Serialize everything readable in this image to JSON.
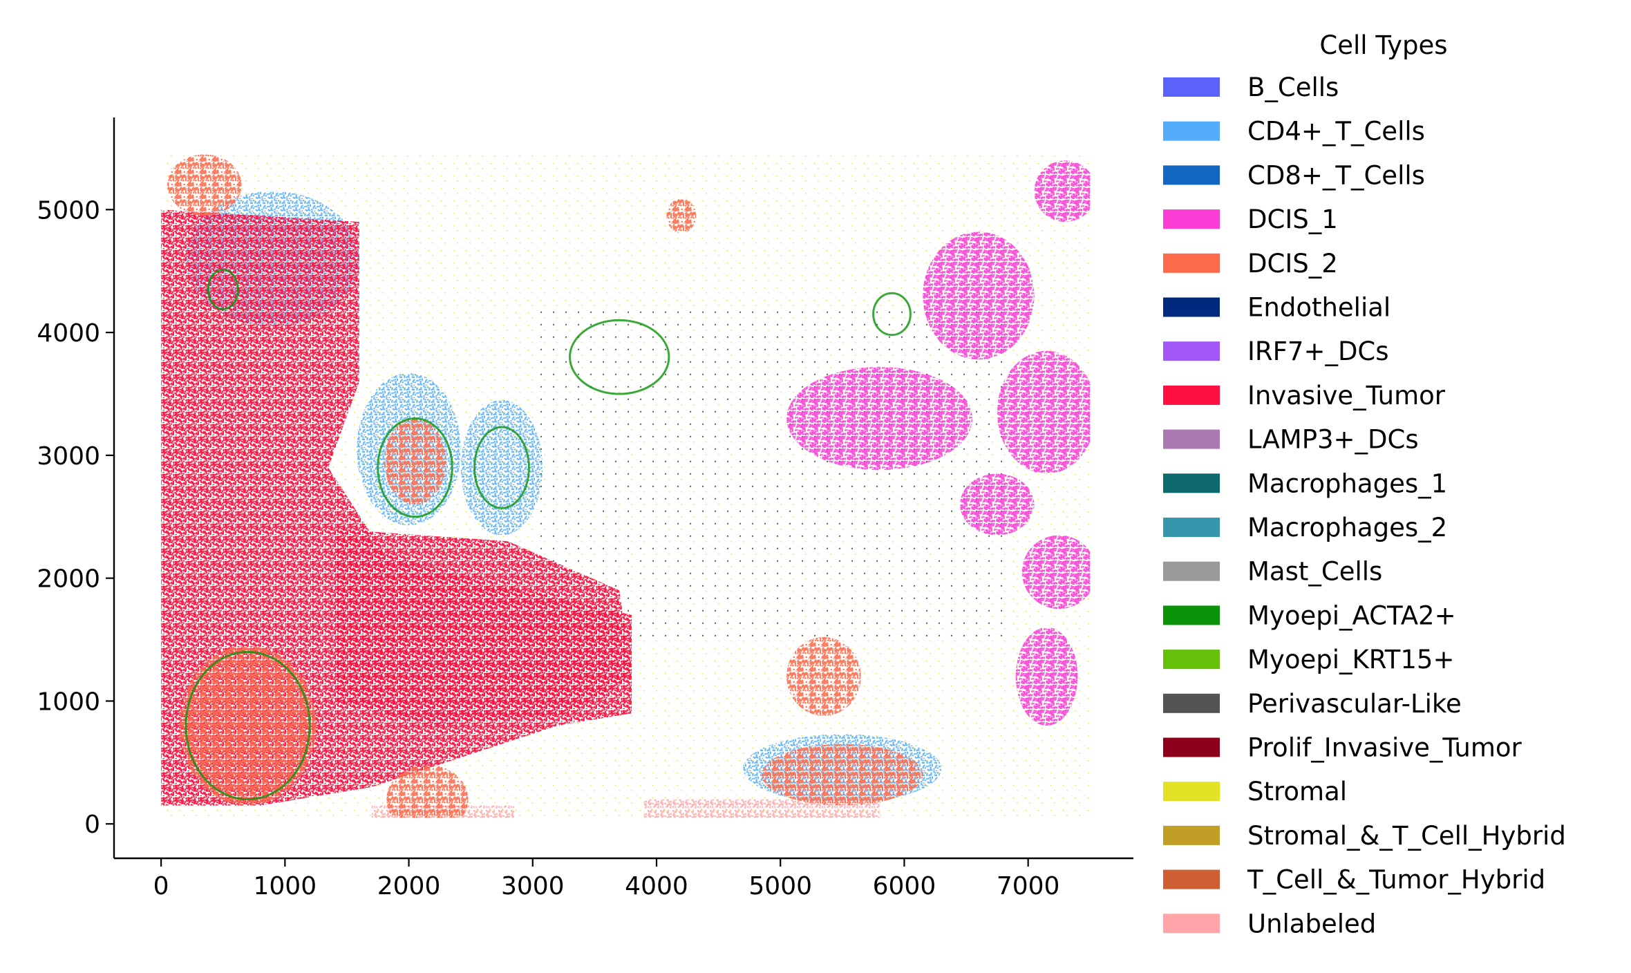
{
  "chart_data": {
    "type": "scatter",
    "title": "",
    "xlabel": "",
    "ylabel": "",
    "xlim": [
      -380,
      7850
    ],
    "ylim": [
      -280,
      5750
    ],
    "x_ticks": [
      0,
      1000,
      2000,
      3000,
      4000,
      5000,
      6000,
      7000
    ],
    "y_ticks": [
      0,
      1000,
      2000,
      3000,
      4000,
      5000
    ],
    "grid": false,
    "legend_title": "Cell Types",
    "legend_position": "right",
    "cell_type_regions": [
      {
        "cell_type": "Invasive_Tumor",
        "shape": "poly",
        "points": [
          [
            0,
            5000
          ],
          [
            1600,
            4900
          ],
          [
            1600,
            3600
          ],
          [
            1350,
            2900
          ],
          [
            1800,
            2200
          ],
          [
            2500,
            2000
          ],
          [
            3800,
            1700
          ],
          [
            3800,
            900
          ],
          [
            3200,
            800
          ],
          [
            2300,
            500
          ],
          [
            1700,
            300
          ],
          [
            800,
            150
          ],
          [
            0,
            150
          ]
        ]
      },
      {
        "cell_type": "Invasive_Tumor",
        "shape": "poly",
        "points": [
          [
            1400,
            2400
          ],
          [
            2800,
            2300
          ],
          [
            3700,
            1900
          ],
          [
            3800,
            1200
          ],
          [
            3300,
            900
          ],
          [
            2200,
            800
          ],
          [
            1400,
            1000
          ]
        ]
      },
      {
        "cell_type": "DCIS_2",
        "shape": "ellipse",
        "cx": 700,
        "cy": 800,
        "rx": 550,
        "ry": 650
      },
      {
        "cell_type": "DCIS_2",
        "shape": "ellipse",
        "cx": 2150,
        "cy": 200,
        "rx": 330,
        "ry": 280
      },
      {
        "cell_type": "DCIS_2",
        "shape": "ellipse",
        "cx": 5350,
        "cy": 1200,
        "rx": 300,
        "ry": 320
      },
      {
        "cell_type": "DCIS_2",
        "shape": "ellipse",
        "cx": 5500,
        "cy": 400,
        "rx": 650,
        "ry": 250
      },
      {
        "cell_type": "DCIS_2",
        "shape": "ellipse",
        "cx": 4200,
        "cy": 4950,
        "rx": 120,
        "ry": 140
      },
      {
        "cell_type": "DCIS_2",
        "shape": "ellipse",
        "cx": 350,
        "cy": 5200,
        "rx": 300,
        "ry": 250
      },
      {
        "cell_type": "DCIS_2",
        "shape": "ellipse",
        "cx": 2050,
        "cy": 2950,
        "rx": 250,
        "ry": 350
      },
      {
        "cell_type": "DCIS_1",
        "shape": "ellipse",
        "cx": 6600,
        "cy": 4300,
        "rx": 450,
        "ry": 520
      },
      {
        "cell_type": "DCIS_1",
        "shape": "ellipse",
        "cx": 5800,
        "cy": 3300,
        "rx": 750,
        "ry": 420
      },
      {
        "cell_type": "DCIS_1",
        "shape": "ellipse",
        "cx": 7150,
        "cy": 3350,
        "rx": 400,
        "ry": 500
      },
      {
        "cell_type": "DCIS_1",
        "shape": "ellipse",
        "cx": 6750,
        "cy": 2600,
        "rx": 300,
        "ry": 250
      },
      {
        "cell_type": "DCIS_1",
        "shape": "ellipse",
        "cx": 7250,
        "cy": 2050,
        "rx": 300,
        "ry": 300
      },
      {
        "cell_type": "DCIS_1",
        "shape": "ellipse",
        "cx": 7300,
        "cy": 5150,
        "rx": 250,
        "ry": 250
      },
      {
        "cell_type": "DCIS_1",
        "shape": "ellipse",
        "cx": 7150,
        "cy": 1200,
        "rx": 250,
        "ry": 400
      },
      {
        "cell_type": "CD4+_T_Cells",
        "shape": "ellipse",
        "cx": 2000,
        "cy": 3050,
        "rx": 420,
        "ry": 620
      },
      {
        "cell_type": "CD4+_T_Cells",
        "shape": "ellipse",
        "cx": 2750,
        "cy": 2900,
        "rx": 330,
        "ry": 550
      },
      {
        "cell_type": "CD4+_T_Cells",
        "shape": "ellipse",
        "cx": 5500,
        "cy": 450,
        "rx": 800,
        "ry": 280
      },
      {
        "cell_type": "CD4+_T_Cells",
        "shape": "ellipse",
        "cx": 900,
        "cy": 4600,
        "rx": 700,
        "ry": 550
      },
      {
        "cell_type": "Stromal",
        "shape": "rect",
        "x0": 0,
        "y0": 50,
        "x1": 7500,
        "y1": 5450
      },
      {
        "cell_type": "Myoepi_ACTA2+",
        "shape": "ring",
        "cx": 5900,
        "cy": 4150,
        "rx": 150,
        "ry": 170
      },
      {
        "cell_type": "Myoepi_ACTA2+",
        "shape": "ring",
        "cx": 2050,
        "cy": 2900,
        "rx": 300,
        "ry": 400
      },
      {
        "cell_type": "Myoepi_ACTA2+",
        "shape": "ring",
        "cx": 2750,
        "cy": 2900,
        "rx": 220,
        "ry": 330
      },
      {
        "cell_type": "Myoepi_ACTA2+",
        "shape": "ring",
        "cx": 500,
        "cy": 4350,
        "rx": 120,
        "ry": 160
      },
      {
        "cell_type": "Myoepi_ACTA2+",
        "shape": "ring",
        "cx": 700,
        "cy": 800,
        "rx": 500,
        "ry": 600
      },
      {
        "cell_type": "Myoepi_ACTA2+",
        "shape": "ring",
        "cx": 3700,
        "cy": 3800,
        "rx": 400,
        "ry": 300
      },
      {
        "cell_type": "Unlabeled",
        "shape": "rect",
        "x0": 1700,
        "y0": 30,
        "x1": 2850,
        "y1": 150
      },
      {
        "cell_type": "Unlabeled",
        "shape": "rect",
        "x0": 3900,
        "y0": 30,
        "x1": 5800,
        "y1": 200
      },
      {
        "cell_type": "Endothelial",
        "shape": "rect",
        "x0": 3000,
        "y0": 1500,
        "x1": 6800,
        "y1": 4200
      }
    ]
  },
  "legend": {
    "title": "Cell Types",
    "items": [
      {
        "label": "B_Cells",
        "color": "#5b62fb"
      },
      {
        "label": "CD4+_T_Cells",
        "color": "#53adfb"
      },
      {
        "label": "CD8+_T_Cells",
        "color": "#1467c0"
      },
      {
        "label": "DCIS_1",
        "color": "#fb3dd5"
      },
      {
        "label": "DCIS_2",
        "color": "#fd6a4b"
      },
      {
        "label": "Endothelial",
        "color": "#002a7e"
      },
      {
        "label": "IRF7+_DCs",
        "color": "#a257f6"
      },
      {
        "label": "Invasive_Tumor",
        "color": "#ff0f3f"
      },
      {
        "label": "LAMP3+_DCs",
        "color": "#ab7ab3"
      },
      {
        "label": "Macrophages_1",
        "color": "#0e6a6d"
      },
      {
        "label": "Macrophages_2",
        "color": "#3696ab"
      },
      {
        "label": "Mast_Cells",
        "color": "#9a9a9a"
      },
      {
        "label": "Myoepi_ACTA2+",
        "color": "#0a9309"
      },
      {
        "label": "Myoepi_KRT15+",
        "color": "#66c00a"
      },
      {
        "label": "Perivascular-Like",
        "color": "#545454"
      },
      {
        "label": "Prolif_Invasive_Tumor",
        "color": "#8c001c"
      },
      {
        "label": "Stromal",
        "color": "#e4e227"
      },
      {
        "label": "Stromal_&_T_Cell_Hybrid",
        "color": "#c19f27"
      },
      {
        "label": "T_Cell_&_Tumor_Hybrid",
        "color": "#cf5f33"
      },
      {
        "label": "Unlabeled",
        "color": "#ffa5a9"
      }
    ]
  }
}
